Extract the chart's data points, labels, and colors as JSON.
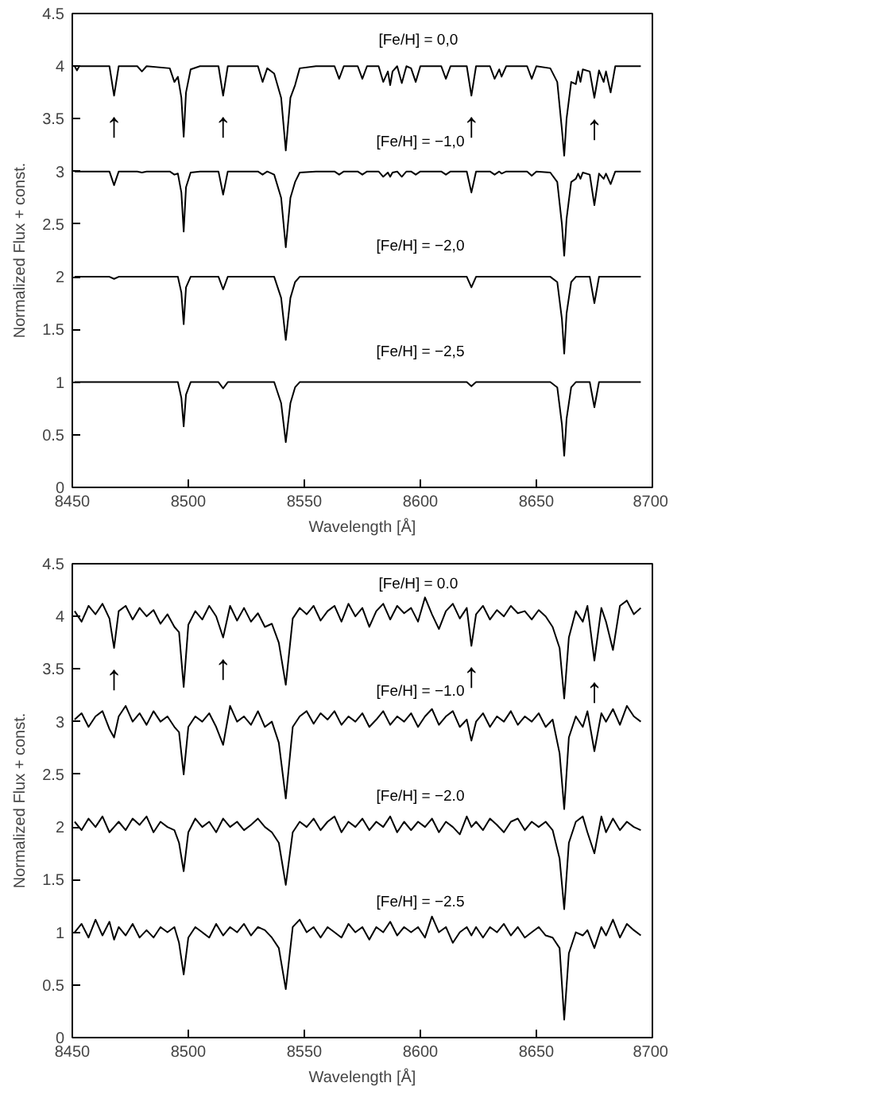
{
  "chart_data": [
    {
      "type": "line",
      "xlabel": "Wavelength [Å]",
      "ylabel": "Normalized Flux + const.",
      "xlim": [
        8450,
        8700
      ],
      "ylim": [
        0,
        4.5
      ],
      "xticks": [
        8450,
        8500,
        8550,
        8600,
        8650,
        8700
      ],
      "yticks": [
        0,
        0.5,
        1,
        1.5,
        2,
        2.5,
        3,
        3.5,
        4,
        4.5
      ],
      "grid": false,
      "legend": false,
      "marker": "none",
      "line_style": "solid",
      "x": [
        8451,
        8452,
        8453,
        8466,
        8468,
        8470,
        8478,
        8480,
        8482,
        8492,
        8494,
        8495.5,
        8497,
        8498,
        8499,
        8501,
        8505,
        8513,
        8515,
        8517,
        8530,
        8532,
        8534,
        8537,
        8540,
        8542,
        8544,
        8546,
        8548,
        8555,
        8563,
        8565,
        8567,
        8573,
        8575,
        8577,
        8582,
        8584,
        8586,
        8587,
        8588,
        8590,
        8592,
        8594,
        8596,
        8598,
        8600,
        8609,
        8611,
        8613,
        8620,
        8622,
        8624,
        8630,
        8632,
        8634,
        8635,
        8637,
        8646,
        8648,
        8650,
        8656,
        8659,
        8661,
        8662,
        8663,
        8665,
        8667,
        8668,
        8669,
        8670,
        8673,
        8675,
        8677,
        8679,
        8680,
        8682,
        8684,
        8690,
        8695
      ],
      "series": [
        {
          "name": "[Fe/H] =  0,0",
          "color": "#000000",
          "values": [
            4.0,
            3.96,
            4.0,
            4.0,
            3.72,
            4.0,
            4.0,
            3.95,
            4.0,
            3.98,
            3.85,
            3.9,
            3.7,
            3.33,
            3.75,
            3.97,
            4.0,
            4.0,
            3.72,
            4.0,
            4.0,
            3.85,
            3.98,
            3.93,
            3.7,
            3.2,
            3.7,
            3.82,
            3.98,
            4.0,
            4.0,
            3.88,
            4.0,
            4.0,
            3.88,
            4.0,
            4.0,
            3.85,
            3.95,
            3.82,
            3.95,
            4.0,
            3.84,
            4.0,
            3.98,
            3.85,
            4.0,
            4.0,
            3.88,
            4.0,
            4.0,
            3.72,
            4.0,
            4.0,
            3.88,
            3.97,
            3.9,
            4.0,
            4.0,
            3.88,
            4.0,
            3.98,
            3.85,
            3.4,
            3.15,
            3.5,
            3.85,
            3.83,
            3.95,
            3.85,
            3.97,
            3.95,
            3.7,
            3.96,
            3.85,
            3.95,
            3.75,
            4.0,
            4.0,
            4.0
          ]
        },
        {
          "name": "[Fe/H] = −1,0",
          "color": "#000000",
          "values": [
            3.0,
            3.0,
            3.0,
            3.0,
            2.87,
            3.0,
            3.0,
            2.99,
            3.0,
            3.0,
            2.97,
            2.98,
            2.8,
            2.43,
            2.85,
            2.99,
            3.0,
            3.0,
            2.78,
            3.0,
            3.0,
            2.97,
            3.0,
            2.97,
            2.75,
            2.28,
            2.75,
            2.9,
            2.99,
            3.0,
            3.0,
            2.97,
            3.0,
            3.0,
            2.97,
            3.0,
            3.0,
            2.95,
            2.99,
            2.95,
            2.99,
            3.0,
            2.95,
            3.0,
            3.0,
            2.97,
            3.0,
            3.0,
            2.97,
            3.0,
            3.0,
            2.8,
            3.0,
            3.0,
            2.97,
            3.0,
            2.98,
            3.0,
            3.0,
            2.96,
            3.0,
            2.99,
            2.9,
            2.5,
            2.2,
            2.55,
            2.9,
            2.93,
            2.98,
            2.93,
            2.99,
            2.97,
            2.68,
            2.98,
            2.93,
            2.98,
            2.88,
            3.0,
            3.0,
            3.0
          ]
        },
        {
          "name": "[Fe/H] = −2,0",
          "color": "#000000",
          "values": [
            2.0,
            2.0,
            2.0,
            2.0,
            1.98,
            2.0,
            2.0,
            2.0,
            2.0,
            2.0,
            2.0,
            2.0,
            1.85,
            1.55,
            1.9,
            2.0,
            2.0,
            2.0,
            1.88,
            2.0,
            2.0,
            2.0,
            2.0,
            2.0,
            1.8,
            1.4,
            1.8,
            1.95,
            2.0,
            2.0,
            2.0,
            2.0,
            2.0,
            2.0,
            2.0,
            2.0,
            2.0,
            2.0,
            2.0,
            2.0,
            2.0,
            2.0,
            2.0,
            2.0,
            2.0,
            2.0,
            2.0,
            2.0,
            2.0,
            2.0,
            2.0,
            1.9,
            2.0,
            2.0,
            2.0,
            2.0,
            2.0,
            2.0,
            2.0,
            2.0,
            2.0,
            2.0,
            1.95,
            1.6,
            1.27,
            1.65,
            1.95,
            2.0,
            2.0,
            2.0,
            2.0,
            2.0,
            1.75,
            2.0,
            2.0,
            2.0,
            2.0,
            2.0,
            2.0,
            2.0
          ]
        },
        {
          "name": "[Fe/H] = −2,5",
          "color": "#000000",
          "values": [
            1.0,
            1.0,
            1.0,
            1.0,
            1.0,
            1.0,
            1.0,
            1.0,
            1.0,
            1.0,
            1.0,
            1.0,
            0.85,
            0.58,
            0.88,
            1.0,
            1.0,
            1.0,
            0.94,
            1.0,
            1.0,
            1.0,
            1.0,
            1.0,
            0.8,
            0.43,
            0.8,
            0.95,
            1.0,
            1.0,
            1.0,
            1.0,
            1.0,
            1.0,
            1.0,
            1.0,
            1.0,
            1.0,
            1.0,
            1.0,
            1.0,
            1.0,
            1.0,
            1.0,
            1.0,
            1.0,
            1.0,
            1.0,
            1.0,
            1.0,
            1.0,
            0.96,
            1.0,
            1.0,
            1.0,
            1.0,
            1.0,
            1.0,
            1.0,
            1.0,
            1.0,
            1.0,
            0.95,
            0.6,
            0.3,
            0.65,
            0.95,
            1.0,
            1.0,
            1.0,
            1.0,
            1.0,
            0.76,
            1.0,
            1.0,
            1.0,
            1.0,
            1.0,
            1.0,
            1.0
          ]
        }
      ],
      "annotations": [
        {
          "text": "↑",
          "x": 8468,
          "y": 3.72
        },
        {
          "text": "↑",
          "x": 8515,
          "y": 3.72
        },
        {
          "text": "↑",
          "x": 8622,
          "y": 3.72
        },
        {
          "text": "↑",
          "x": 8675,
          "y": 3.7
        }
      ]
    },
    {
      "type": "line",
      "xlabel": "Wavelength [Å]",
      "ylabel": "Normalized Flux + const.",
      "xlim": [
        8450,
        8700
      ],
      "ylim": [
        0,
        4.5
      ],
      "xticks": [
        8450,
        8500,
        8550,
        8600,
        8650,
        8700
      ],
      "yticks": [
        0,
        0.5,
        1,
        1.5,
        2,
        2.5,
        3,
        3.5,
        4,
        4.5
      ],
      "grid": false,
      "legend": false,
      "marker": "none",
      "line_style": "solid",
      "x": [
        8451,
        8454,
        8457,
        8460,
        8463,
        8466,
        8468,
        8470,
        8473,
        8476,
        8479,
        8482,
        8485,
        8488,
        8491,
        8494,
        8496,
        8498,
        8500,
        8503,
        8506,
        8509,
        8512,
        8515,
        8518,
        8521,
        8524,
        8527,
        8530,
        8533,
        8536,
        8539,
        8542,
        8545,
        8548,
        8551,
        8554,
        8557,
        8560,
        8563,
        8566,
        8569,
        8572,
        8575,
        8578,
        8581,
        8584,
        8587,
        8590,
        8593,
        8596,
        8599,
        8602,
        8605,
        8608,
        8611,
        8614,
        8617,
        8620,
        8622,
        8624,
        8627,
        8630,
        8633,
        8636,
        8639,
        8642,
        8645,
        8648,
        8651,
        8654,
        8657,
        8660,
        8662,
        8664,
        8667,
        8670,
        8672,
        8675,
        8678,
        8680,
        8683,
        8686,
        8689,
        8692,
        8695
      ],
      "series": [
        {
          "name": "[Fe/H] =  0.0",
          "color": "#000000",
          "values": [
            4.05,
            3.95,
            4.1,
            4.02,
            4.12,
            3.98,
            3.7,
            4.05,
            4.1,
            3.97,
            4.08,
            4.0,
            4.06,
            3.93,
            4.02,
            3.9,
            3.85,
            3.33,
            3.92,
            4.05,
            3.97,
            4.1,
            4.0,
            3.8,
            4.1,
            3.96,
            4.08,
            3.95,
            4.03,
            3.9,
            3.93,
            3.75,
            3.35,
            3.98,
            4.08,
            4.02,
            4.1,
            3.96,
            4.05,
            4.1,
            3.95,
            4.12,
            4.0,
            4.08,
            3.9,
            4.05,
            4.12,
            3.97,
            4.1,
            4.03,
            4.08,
            3.95,
            4.18,
            4.02,
            3.88,
            4.05,
            4.12,
            3.98,
            4.08,
            3.72,
            4.02,
            4.1,
            3.97,
            4.06,
            4.0,
            4.1,
            4.03,
            4.05,
            3.97,
            4.06,
            4.0,
            3.9,
            3.7,
            3.22,
            3.8,
            4.05,
            3.95,
            4.1,
            3.58,
            4.08,
            3.95,
            3.68,
            4.1,
            4.15,
            4.02,
            4.08
          ]
        },
        {
          "name": "[Fe/H] = −1.0",
          "color": "#000000",
          "values": [
            3.02,
            3.08,
            2.95,
            3.05,
            3.1,
            2.93,
            2.85,
            3.05,
            3.15,
            3.0,
            3.08,
            2.97,
            3.1,
            3.0,
            3.05,
            2.95,
            2.9,
            2.5,
            2.95,
            3.05,
            3.0,
            3.08,
            2.95,
            2.78,
            3.15,
            3.0,
            3.05,
            2.97,
            3.1,
            2.95,
            3.0,
            2.8,
            2.27,
            2.95,
            3.05,
            3.1,
            2.98,
            3.08,
            3.02,
            3.1,
            2.97,
            3.05,
            3.0,
            3.08,
            2.95,
            3.02,
            3.1,
            2.97,
            3.05,
            3.0,
            3.08,
            2.95,
            3.05,
            3.12,
            2.97,
            3.05,
            3.1,
            2.95,
            3.02,
            2.82,
            3.0,
            3.08,
            2.95,
            3.05,
            3.0,
            3.1,
            2.97,
            3.05,
            3.0,
            3.08,
            2.95,
            3.02,
            2.7,
            2.17,
            2.85,
            3.05,
            2.95,
            3.1,
            2.72,
            3.08,
            3.0,
            3.12,
            2.97,
            3.15,
            3.05,
            3.0
          ]
        },
        {
          "name": "[Fe/H] = −2.0",
          "color": "#000000",
          "values": [
            2.05,
            1.97,
            2.08,
            2.0,
            2.1,
            1.95,
            2.0,
            2.05,
            1.97,
            2.08,
            2.02,
            2.1,
            1.95,
            2.05,
            2.0,
            1.97,
            1.85,
            1.58,
            1.95,
            2.08,
            2.0,
            2.05,
            1.95,
            2.08,
            2.0,
            2.05,
            1.97,
            2.02,
            2.08,
            2.0,
            1.95,
            1.85,
            1.45,
            1.95,
            2.05,
            2.0,
            2.08,
            1.97,
            2.05,
            2.1,
            1.95,
            2.05,
            2.0,
            2.08,
            1.97,
            2.05,
            2.0,
            2.1,
            1.95,
            2.05,
            1.97,
            2.05,
            2.0,
            2.08,
            1.95,
            2.05,
            2.0,
            1.93,
            2.1,
            2.0,
            2.05,
            1.97,
            2.08,
            2.02,
            1.95,
            2.05,
            2.08,
            1.97,
            2.05,
            2.0,
            2.05,
            1.97,
            1.7,
            1.22,
            1.85,
            2.05,
            2.1,
            1.95,
            1.75,
            2.1,
            1.95,
            2.08,
            1.97,
            2.05,
            2.0,
            1.97
          ]
        },
        {
          "name": "[Fe/H] = −2.5",
          "color": "#000000",
          "values": [
            1.0,
            1.08,
            0.95,
            1.12,
            0.97,
            1.1,
            0.93,
            1.05,
            0.97,
            1.08,
            0.95,
            1.02,
            0.95,
            1.05,
            1.0,
            1.05,
            0.9,
            0.6,
            0.95,
            1.05,
            1.0,
            0.95,
            1.08,
            0.97,
            1.05,
            1.0,
            1.08,
            0.97,
            1.05,
            1.02,
            0.95,
            0.85,
            0.46,
            1.05,
            1.12,
            1.0,
            1.05,
            0.95,
            1.05,
            1.0,
            0.95,
            1.08,
            1.0,
            1.05,
            0.93,
            1.05,
            1.0,
            1.1,
            0.97,
            1.05,
            1.0,
            1.05,
            0.95,
            1.15,
            1.0,
            1.05,
            0.9,
            1.0,
            1.05,
            0.97,
            1.05,
            0.95,
            1.05,
            1.0,
            1.08,
            0.97,
            1.05,
            0.95,
            1.0,
            1.05,
            0.97,
            0.95,
            0.85,
            0.17,
            0.8,
            1.0,
            0.97,
            1.02,
            0.85,
            1.05,
            0.97,
            1.12,
            0.95,
            1.08,
            1.02,
            0.97
          ]
        }
      ],
      "annotations": [
        {
          "text": "↑",
          "x": 8468,
          "y": 3.7
        },
        {
          "text": "↑",
          "x": 8515,
          "y": 3.8
        },
        {
          "text": "↑",
          "x": 8622,
          "y": 3.72
        },
        {
          "text": "↑",
          "x": 8675,
          "y": 3.58
        }
      ]
    }
  ]
}
